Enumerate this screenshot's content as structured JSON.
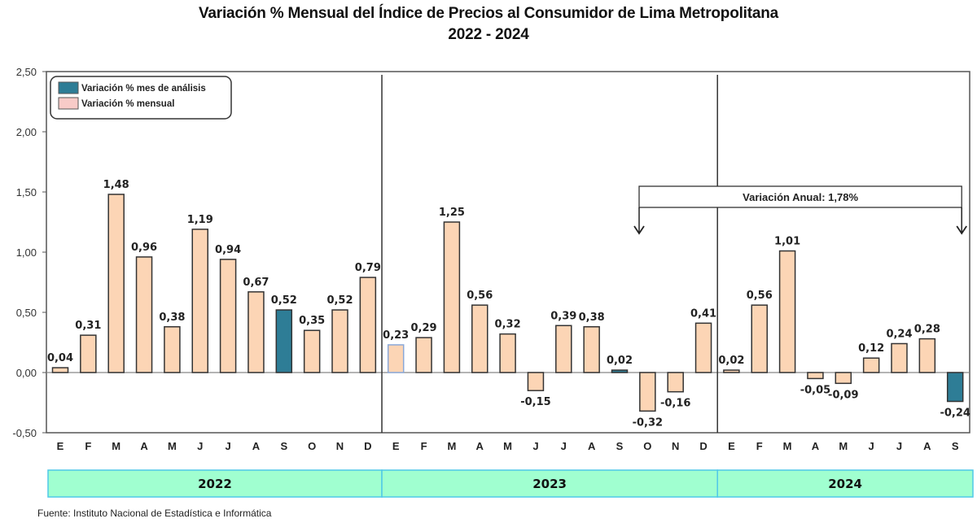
{
  "chart_data": {
    "type": "bar",
    "title": "Variación % Mensual del Índice de Precios al Consumidor de Lima Metropolitana",
    "subtitle": "2022 - 2024",
    "xlabel": "",
    "ylabel": "",
    "ylim": [
      -0.5,
      2.5
    ],
    "yticks": [
      -0.5,
      0.0,
      0.5,
      1.0,
      1.5,
      2.0,
      2.5
    ],
    "ytick_labels": [
      "-0,50",
      "0,00",
      "0,50",
      "1,00",
      "1,50",
      "2,00",
      "2,50"
    ],
    "grid": false,
    "categories": [
      "E",
      "F",
      "M",
      "A",
      "M",
      "J",
      "J",
      "A",
      "S",
      "O",
      "N",
      "D",
      "E",
      "F",
      "M",
      "A",
      "M",
      "J",
      "J",
      "A",
      "S",
      "O",
      "N",
      "D",
      "E",
      "F",
      "M",
      "A",
      "M",
      "J",
      "J",
      "A",
      "S"
    ],
    "values": [
      0.04,
      0.31,
      1.48,
      0.96,
      0.38,
      1.19,
      0.94,
      0.67,
      0.52,
      0.35,
      0.52,
      0.79,
      0.23,
      0.29,
      1.25,
      0.56,
      0.32,
      -0.15,
      0.39,
      0.38,
      0.02,
      -0.32,
      -0.16,
      0.41,
      0.02,
      0.56,
      1.01,
      -0.05,
      -0.09,
      0.12,
      0.24,
      0.28,
      -0.24
    ],
    "value_labels": [
      "0,04",
      "0,31",
      "1,48",
      "0,96",
      "0,38",
      "1,19",
      "0,94",
      "0,67",
      "0,52",
      "0,35",
      "0,52",
      "0,79",
      "0,23",
      "0,29",
      "1,25",
      "0,56",
      "0,32",
      "-0,15",
      "0,39",
      "0,38",
      "0,02",
      "-0,32",
      "-0,16",
      "0,41",
      "0,02",
      "0,56",
      "1,01",
      "-0,05",
      "-0,09",
      "0,12",
      "0,24",
      "0,28",
      "-0,24"
    ],
    "highlight_indices": [
      8,
      20,
      32
    ],
    "years": [
      {
        "label": "2022",
        "months": 12
      },
      {
        "label": "2023",
        "months": 12
      },
      {
        "label": "2024",
        "months": 9
      }
    ],
    "legend": {
      "placement": "top-left",
      "entries": [
        {
          "label": "Variación % mes de análisis",
          "color": "#2E7D96"
        },
        {
          "label": "Variación % mensual",
          "color": "#F8CBC8"
        }
      ]
    },
    "annotation": {
      "text": "Variación Anual: 1,78%",
      "from_index": 21,
      "to_index": 32
    },
    "colors": {
      "bar": "#FCD5B5",
      "highlight": "#2E7D96",
      "year_band": "#A0FFD0",
      "year_band_border": "#4FC8E8"
    }
  },
  "source": "Fuente: Instituto Nacional de Estadística e Informática"
}
